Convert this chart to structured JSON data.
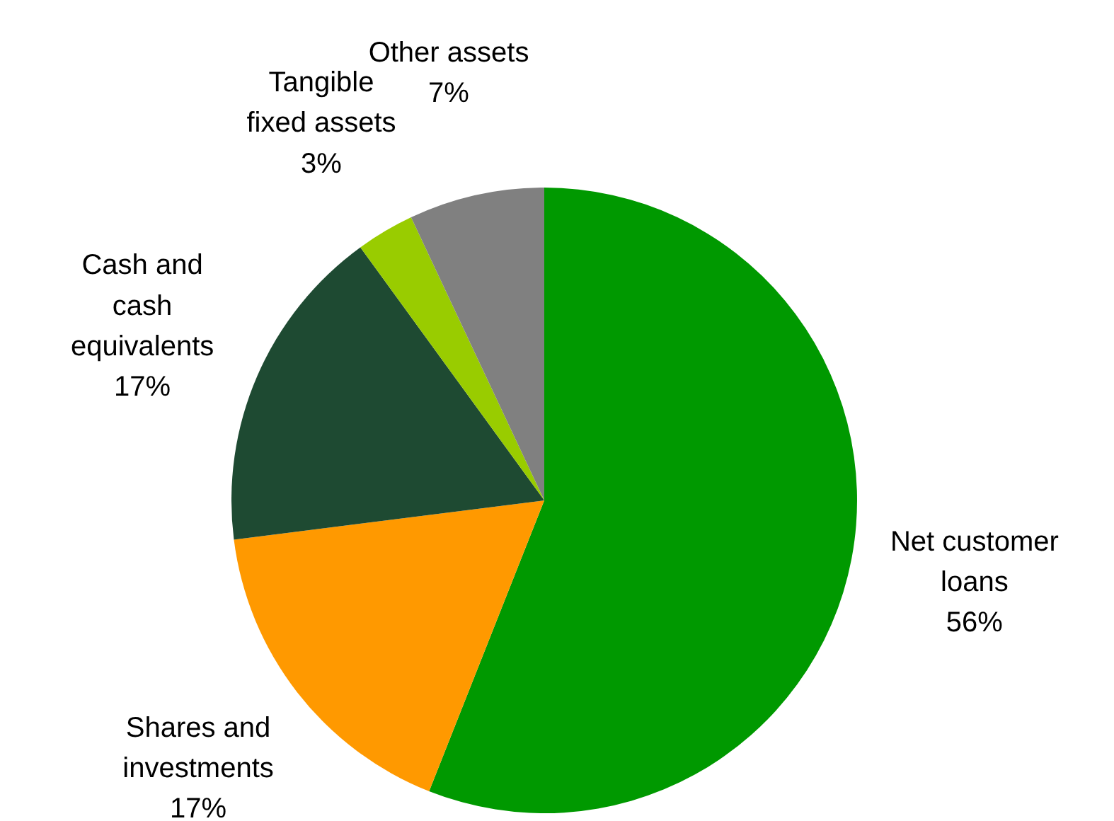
{
  "chart_data": {
    "type": "pie",
    "categories": [
      "Net customer loans",
      "Shares and investments",
      "Cash and cash equivalents",
      "Tangible fixed assets",
      "Other assets"
    ],
    "values": [
      56,
      17,
      17,
      3,
      7
    ],
    "colors": [
      "#009900",
      "#ff9900",
      "#1e4a32",
      "#99cc00",
      "#808080"
    ],
    "value_labels": [
      "56%",
      "17%",
      "17%",
      "3%",
      "7%"
    ]
  }
}
